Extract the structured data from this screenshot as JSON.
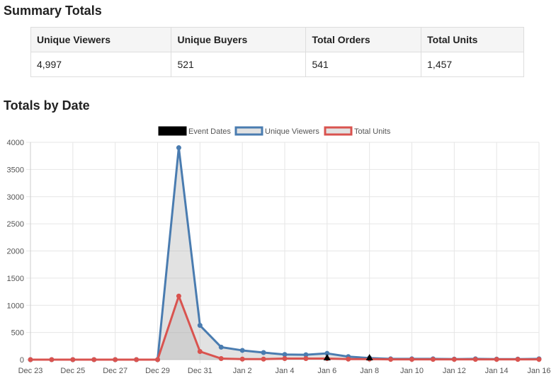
{
  "summary": {
    "title": "Summary Totals",
    "headers": [
      "Unique Viewers",
      "Unique Buyers",
      "Total Orders",
      "Total Units"
    ],
    "values": [
      "4,997",
      "521",
      "541",
      "1,457"
    ]
  },
  "dates_section": {
    "title": "Totals by Date"
  },
  "colors": {
    "viewers": "#4a7cb0",
    "units": "#d9534f",
    "event": "#000000",
    "fill": "rgba(180,180,180,0.38)",
    "grid": "#e6e6e6"
  },
  "chart_data": {
    "type": "line",
    "legend": [
      "Event Dates",
      "Unique Viewers",
      "Total Units"
    ],
    "legend_position": "top",
    "grid": true,
    "ylim": [
      0,
      4000
    ],
    "yticks": [
      0,
      500,
      1000,
      1500,
      2000,
      2500,
      3000,
      3500,
      4000
    ],
    "x": [
      "Dec 23",
      "Dec 24",
      "Dec 25",
      "Dec 26",
      "Dec 27",
      "Dec 28",
      "Dec 29",
      "Dec 30",
      "Dec 31",
      "Jan 1",
      "Jan 2",
      "Jan 3",
      "Jan 4",
      "Jan 5",
      "Jan 6",
      "Jan 7",
      "Jan 8",
      "Jan 9",
      "Jan 10",
      "Jan 11",
      "Jan 12",
      "Jan 13",
      "Jan 14",
      "Jan 15",
      "Jan 16"
    ],
    "xtick_labels": [
      "Dec 23",
      "Dec 25",
      "Dec 27",
      "Dec 29",
      "Dec 31",
      "Jan 2",
      "Jan 4",
      "Jan 6",
      "Jan 8",
      "Jan 10",
      "Jan 12",
      "Jan 14",
      "Jan 16"
    ],
    "series": [
      {
        "name": "Unique Viewers",
        "values": [
          0,
          0,
          0,
          0,
          0,
          0,
          0,
          3900,
          630,
          230,
          170,
          130,
          95,
          90,
          115,
          55,
          30,
          15,
          15,
          15,
          10,
          15,
          10,
          10,
          15
        ]
      },
      {
        "name": "Total Units",
        "values": [
          0,
          0,
          0,
          0,
          0,
          0,
          0,
          1170,
          150,
          20,
          10,
          10,
          20,
          20,
          20,
          10,
          10,
          5,
          5,
          5,
          5,
          5,
          5,
          5,
          5
        ]
      }
    ],
    "event_dates": [
      "Jan 6",
      "Jan 8"
    ]
  }
}
